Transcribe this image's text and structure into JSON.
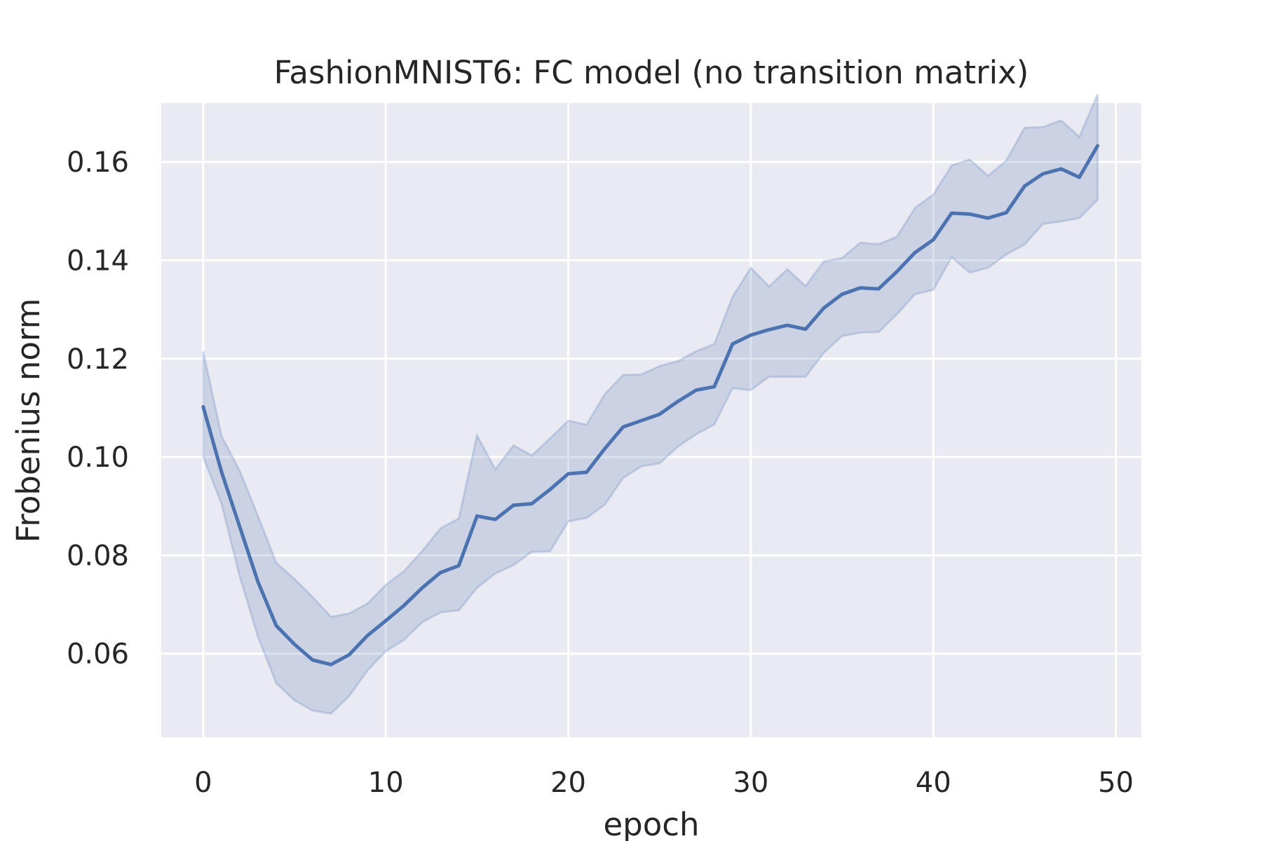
{
  "chart_data": {
    "type": "line",
    "title": "FashionMNIST6: FC model (no transition matrix)",
    "xlabel": "epoch",
    "ylabel": "Frobenius norm",
    "xlim": [
      -2.3,
      51.4
    ],
    "ylim": [
      0.043,
      0.172
    ],
    "xticks": [
      0,
      10,
      20,
      30,
      40,
      50
    ],
    "xtick_labels": [
      "0",
      "10",
      "20",
      "30",
      "40",
      "50"
    ],
    "yticks": [
      0.06,
      0.08,
      0.1,
      0.12,
      0.14,
      0.16
    ],
    "ytick_labels": [
      "0.06",
      "0.08",
      "0.10",
      "0.12",
      "0.14",
      "0.16"
    ],
    "grid": true,
    "colors": {
      "background": "#eaeaf2",
      "grid": "#ffffff",
      "line": "#4c72b0",
      "band": "#4c72b0",
      "text": "#262626"
    },
    "series": [
      {
        "x": [
          0,
          1,
          2,
          3,
          4,
          5,
          6,
          7,
          8,
          9,
          10,
          11,
          12,
          13,
          14,
          15,
          16,
          17,
          18,
          19,
          20,
          21,
          22,
          23,
          24,
          25,
          26,
          27,
          28,
          29,
          30,
          31,
          32,
          33,
          34,
          35,
          36,
          37,
          38,
          39,
          40,
          41,
          42,
          43,
          44,
          45,
          46,
          47,
          48,
          49
        ],
        "y": [
          0.1102,
          0.097,
          0.0858,
          0.0746,
          0.0657,
          0.0619,
          0.0587,
          0.0578,
          0.0598,
          0.0637,
          0.0667,
          0.0698,
          0.0734,
          0.0765,
          0.0779,
          0.088,
          0.0873,
          0.0902,
          0.0905,
          0.0934,
          0.0966,
          0.0969,
          0.1017,
          0.1061,
          0.1074,
          0.1087,
          0.1113,
          0.1136,
          0.1143,
          0.123,
          0.1248,
          0.1259,
          0.1268,
          0.126,
          0.1303,
          0.1331,
          0.1344,
          0.1342,
          0.1377,
          0.1416,
          0.1442,
          0.1496,
          0.1494,
          0.1486,
          0.1497,
          0.1551,
          0.1576,
          0.1586,
          0.1569,
          0.1633
        ],
        "lower": [
          0.1,
          0.0905,
          0.0757,
          0.0634,
          0.054,
          0.0505,
          0.0484,
          0.0478,
          0.0514,
          0.0566,
          0.0605,
          0.0628,
          0.0664,
          0.0684,
          0.0688,
          0.0734,
          0.0763,
          0.078,
          0.0807,
          0.0808,
          0.0869,
          0.0876,
          0.0903,
          0.0957,
          0.0981,
          0.0987,
          0.1021,
          0.1046,
          0.1066,
          0.114,
          0.1136,
          0.1163,
          0.1163,
          0.1163,
          0.1212,
          0.1246,
          0.1253,
          0.1254,
          0.129,
          0.1331,
          0.134,
          0.1406,
          0.1375,
          0.1385,
          0.1412,
          0.1432,
          0.1474,
          0.1479,
          0.1486,
          0.1523
        ],
        "upper": [
          0.1215,
          0.1043,
          0.0972,
          0.088,
          0.0785,
          0.0752,
          0.0715,
          0.0675,
          0.0682,
          0.0702,
          0.074,
          0.0768,
          0.0809,
          0.0855,
          0.0875,
          0.1044,
          0.0975,
          0.1024,
          0.1003,
          0.1038,
          0.1074,
          0.1066,
          0.1128,
          0.1167,
          0.1168,
          0.1185,
          0.1195,
          0.1215,
          0.123,
          0.1326,
          0.1385,
          0.1347,
          0.1382,
          0.1348,
          0.1398,
          0.1405,
          0.1436,
          0.1433,
          0.1448,
          0.1507,
          0.1534,
          0.1593,
          0.1605,
          0.1572,
          0.1603,
          0.167,
          0.1671,
          0.1685,
          0.1651,
          0.1738
        ]
      }
    ]
  }
}
